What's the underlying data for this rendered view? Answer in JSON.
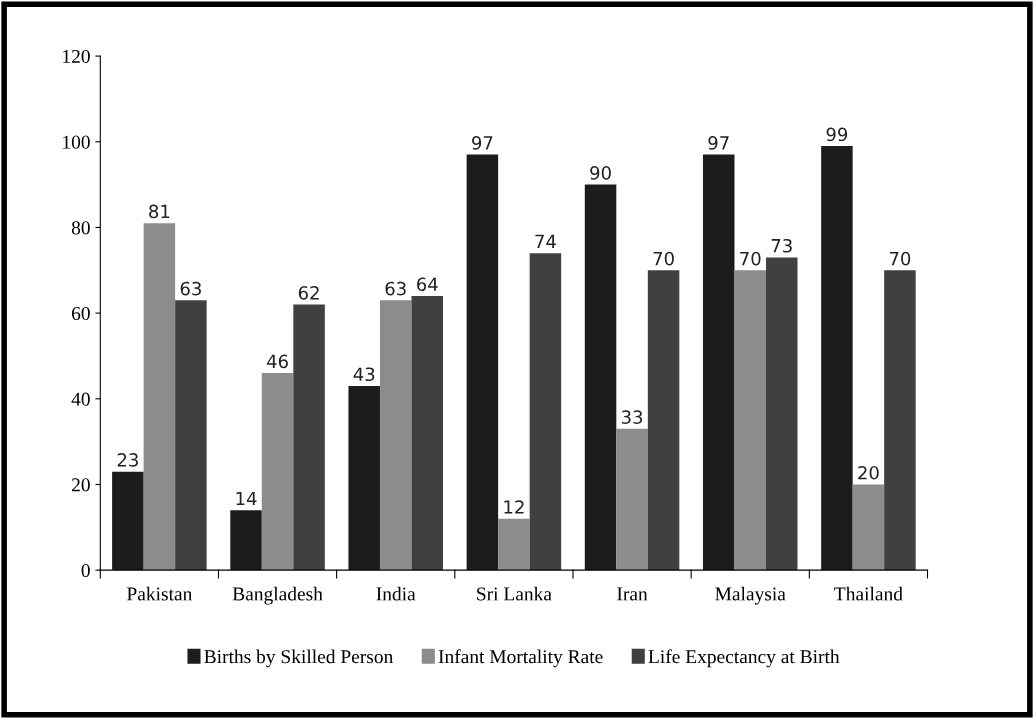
{
  "chart_data": {
    "type": "bar",
    "categories": [
      "Pakistan",
      "Bangladesh",
      "India",
      "Sri Lanka",
      "Iran",
      "Malaysia",
      "Thailand"
    ],
    "series": [
      {
        "name": "Births by Skilled Person",
        "color": "#1c1c1c",
        "values": [
          23,
          14,
          43,
          97,
          90,
          97,
          99
        ]
      },
      {
        "name": "Infant Mortality Rate",
        "color": "#8c8c8c",
        "values": [
          81,
          46,
          63,
          12,
          33,
          70,
          20
        ]
      },
      {
        "name": "Life Expectancy at Birth",
        "color": "#404040",
        "values": [
          63,
          62,
          64,
          74,
          70,
          73,
          70
        ]
      }
    ],
    "ylim": [
      0,
      120
    ],
    "yticks": [
      0,
      20,
      40,
      60,
      80,
      100,
      120
    ],
    "grid": false,
    "legend": "bottom",
    "data_labels": true
  }
}
